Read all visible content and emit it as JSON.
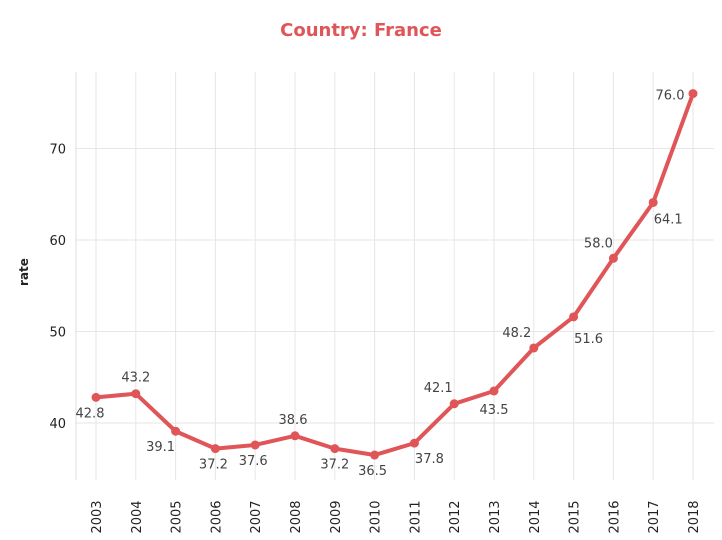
{
  "chart_data": {
    "type": "line",
    "title": "Country:  France",
    "xlabel": "",
    "ylabel": "rate",
    "x": [
      "2003",
      "2004",
      "2005",
      "2006",
      "2007",
      "2008",
      "2009",
      "2010",
      "2011",
      "2012",
      "2013",
      "2014",
      "2015",
      "2016",
      "2017",
      "2018"
    ],
    "series": [
      {
        "values": [
          42.8,
          43.2,
          39.1,
          37.2,
          37.6,
          38.6,
          37.2,
          36.5,
          37.8,
          42.1,
          43.5,
          48.2,
          51.6,
          58.0,
          64.1,
          76.0
        ]
      }
    ],
    "data_labels": [
      "42.8",
      "43.2",
      "39.1",
      "37.2",
      "37.6",
      "38.6",
      "37.2",
      "36.5",
      "37.8",
      "42.1",
      "43.5",
      "48.2",
      "51.6",
      "58.0",
      "64.1",
      "76.0"
    ],
    "y_ticks": [
      "40",
      "50",
      "60",
      "70"
    ],
    "ylim": [
      34.5,
      79.5
    ],
    "grid": true,
    "colors": {
      "line": "#e05557",
      "title": "#e05557",
      "grid": "#e6e6e6"
    }
  }
}
